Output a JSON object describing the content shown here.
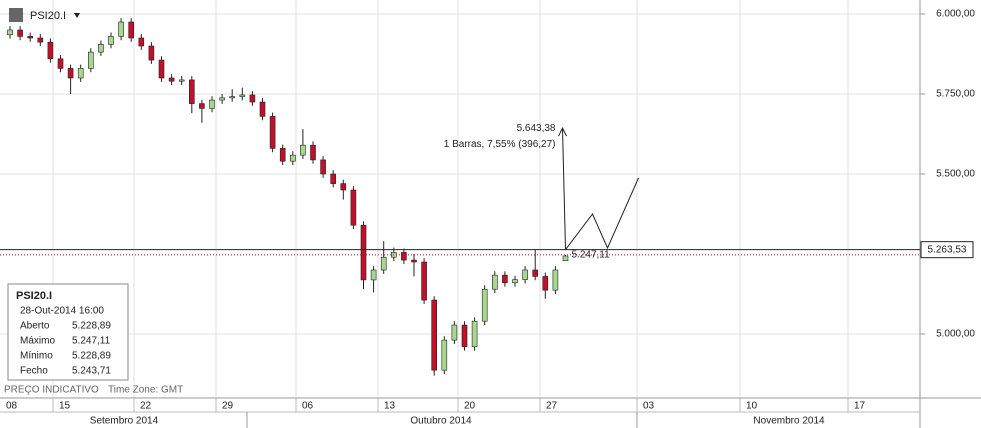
{
  "chart_data": {
    "type": "candlestick",
    "symbol": "PSI20.I",
    "ylim": [
      4800,
      6043.75
    ],
    "yticks": [
      {
        "value": 6000,
        "label": "6.000,00"
      },
      {
        "value": 5750,
        "label": "5.750,00"
      },
      {
        "value": 5500,
        "label": "5.500,00"
      },
      {
        "value": 5000,
        "label": "5.000,00"
      }
    ],
    "date_ticks": [
      "08",
      "15",
      "22",
      "29",
      "06",
      "13",
      "20",
      "27",
      "03",
      "10",
      "17"
    ],
    "months": [
      "Setembro 2014",
      "Outubro 2014",
      "Novembro 2014"
    ],
    "candles": {
      "open": [
        5935,
        5950,
        5930,
        5925,
        5912,
        5860,
        5830,
        5800,
        5830,
        5881,
        5905,
        5930,
        5975,
        5925,
        5900,
        5856,
        5800,
        5790,
        5794,
        5720,
        5705,
        5731,
        5738,
        5742,
        5747,
        5725,
        5680,
        5580,
        5540,
        5559,
        5590,
        5544,
        5500,
        5470,
        5450,
        5340,
        5169,
        5200,
        5240,
        5255,
        5231,
        5225,
        5106,
        4887,
        4981,
        5028,
        4960,
        5040,
        5140,
        5184,
        5160,
        5170,
        5200,
        5180,
        5137,
        5228.89
      ],
      "high": [
        5962,
        5962,
        5942,
        5937,
        5924,
        5872,
        5842,
        5842,
        5893,
        5917,
        5942,
        5987,
        5987,
        5937,
        5912,
        5868,
        5812,
        5806,
        5806,
        5732,
        5743,
        5750,
        5765,
        5770,
        5759,
        5737,
        5692,
        5592,
        5571,
        5640,
        5602,
        5556,
        5512,
        5482,
        5462,
        5352,
        5212,
        5290,
        5270,
        5267,
        5250,
        5237,
        5118,
        4993,
        5040,
        5040,
        5052,
        5152,
        5196,
        5196,
        5182,
        5212,
        5265,
        5192,
        5212,
        5247.11
      ],
      "low": [
        5923,
        5918,
        5913,
        5900,
        5848,
        5818,
        5750,
        5788,
        5818,
        5869,
        5893,
        5918,
        5913,
        5888,
        5844,
        5788,
        5778,
        5778,
        5690,
        5660,
        5693,
        5719,
        5726,
        5730,
        5713,
        5668,
        5568,
        5528,
        5528,
        5547,
        5532,
        5488,
        5458,
        5420,
        5328,
        5140,
        5130,
        5188,
        5228,
        5219,
        5180,
        5094,
        4870,
        4875,
        4969,
        4948,
        4948,
        5028,
        5128,
        5148,
        5148,
        5158,
        5168,
        5110,
        5125,
        5228.89
      ],
      "close": [
        5950,
        5930,
        5925,
        5912,
        5860,
        5830,
        5800,
        5830,
        5881,
        5905,
        5930,
        5975,
        5925,
        5900,
        5856,
        5800,
        5790,
        5794,
        5720,
        5705,
        5731,
        5738,
        5742,
        5747,
        5725,
        5680,
        5580,
        5540,
        5559,
        5590,
        5544,
        5500,
        5470,
        5450,
        5340,
        5169,
        5200,
        5240,
        5255,
        5231,
        5225,
        5106,
        4887,
        4981,
        5028,
        4960,
        5040,
        5140,
        5184,
        5160,
        5170,
        5200,
        5180,
        5137,
        5200,
        5243.71
      ]
    },
    "up_color": "#a8d890",
    "down_color": "#c0102a",
    "price_line": {
      "value": 5263.53,
      "label": "5.263,53"
    },
    "last_high": {
      "value": 5247.11,
      "label": "5.247,11"
    },
    "target": {
      "value": 5643.38,
      "label": "5.643,38"
    },
    "measure": "1 Barras, 7,55% (396,27)",
    "info": {
      "symbol": "PSI20.I",
      "datetime": "28-Out-2014 16:00",
      "rows": [
        [
          "Aberto",
          "5.228,89"
        ],
        [
          "Máximo",
          "5.247,11"
        ],
        [
          "Mínimo",
          "5.228,89"
        ],
        [
          "Fecho",
          "5.243,71"
        ]
      ]
    },
    "footer": "PREÇO INDICATIVO",
    "timezone": "Time Zone: GMT"
  }
}
